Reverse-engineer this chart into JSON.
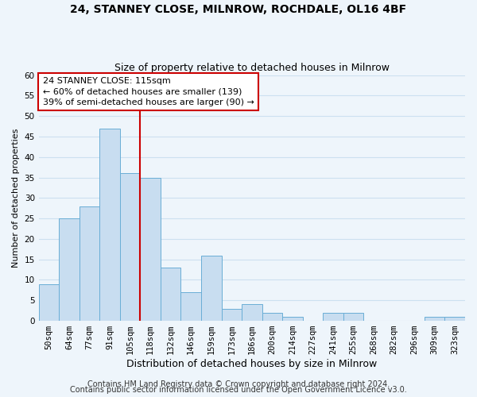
{
  "title": "24, STANNEY CLOSE, MILNROW, ROCHDALE, OL16 4BF",
  "subtitle": "Size of property relative to detached houses in Milnrow",
  "xlabel": "Distribution of detached houses by size in Milnrow",
  "ylabel": "Number of detached properties",
  "bin_labels": [
    "50sqm",
    "64sqm",
    "77sqm",
    "91sqm",
    "105sqm",
    "118sqm",
    "132sqm",
    "146sqm",
    "159sqm",
    "173sqm",
    "186sqm",
    "200sqm",
    "214sqm",
    "227sqm",
    "241sqm",
    "255sqm",
    "268sqm",
    "282sqm",
    "296sqm",
    "309sqm",
    "323sqm"
  ],
  "bar_heights": [
    9,
    25,
    28,
    47,
    36,
    35,
    13,
    7,
    16,
    3,
    4,
    2,
    1,
    0,
    2,
    2,
    0,
    0,
    0,
    1,
    1
  ],
  "bar_color": "#c8ddf0",
  "bar_edge_color": "#6aaed6",
  "vline_color": "#cc0000",
  "annotation_text": "24 STANNEY CLOSE: 115sqm\n← 60% of detached houses are smaller (139)\n39% of semi-detached houses are larger (90) →",
  "annotation_box_color": "#ffffff",
  "annotation_box_edge": "#cc0000",
  "ylim": [
    0,
    60
  ],
  "yticks": [
    0,
    5,
    10,
    15,
    20,
    25,
    30,
    35,
    40,
    45,
    50,
    55,
    60
  ],
  "footer_line1": "Contains HM Land Registry data © Crown copyright and database right 2024.",
  "footer_line2": "Contains public sector information licensed under the Open Government Licence v3.0.",
  "title_fontsize": 10,
  "subtitle_fontsize": 9,
  "ylabel_fontsize": 8,
  "xlabel_fontsize": 9,
  "tick_fontsize": 7.5,
  "footer_fontsize": 7,
  "grid_color": "#cce0f0",
  "background_color": "#eef5fb"
}
